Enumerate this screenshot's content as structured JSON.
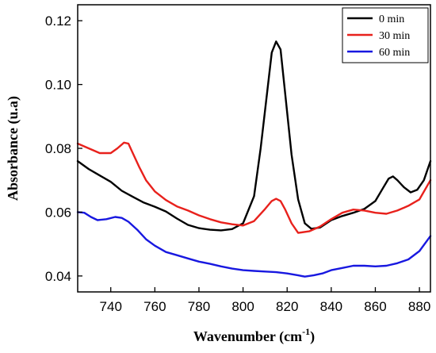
{
  "chart_data": {
    "type": "line",
    "xlabel": "Wavenumber (cm",
    "xlabel_sup": "-1",
    "xlabel_tail": ")",
    "ylabel": "Absorbance (u.a)",
    "xlim": [
      725,
      885
    ],
    "ylim": [
      0.035,
      0.125
    ],
    "x_ticks": [
      740,
      760,
      780,
      800,
      820,
      840,
      860,
      880
    ],
    "y_ticks": [
      0.04,
      0.06,
      0.08,
      0.1,
      0.12
    ],
    "y_tick_labels": [
      "0.04",
      "0.06",
      "0.08",
      "0.10",
      "0.12"
    ],
    "legend_position": "top-right",
    "grid": false,
    "series": [
      {
        "name": "0 min",
        "color": "#000000",
        "x": [
          725,
          730,
          735,
          740,
          745,
          750,
          755,
          760,
          765,
          770,
          775,
          780,
          785,
          790,
          795,
          800,
          805,
          808,
          811,
          813,
          815,
          817,
          819,
          822,
          825,
          828,
          831,
          835,
          840,
          845,
          850,
          855,
          860,
          863,
          866,
          868,
          870,
          873,
          876,
          879,
          882,
          885
        ],
        "y": [
          0.076,
          0.0735,
          0.0715,
          0.0695,
          0.0667,
          0.0648,
          0.063,
          0.0617,
          0.0602,
          0.058,
          0.056,
          0.055,
          0.0545,
          0.0543,
          0.0547,
          0.0565,
          0.065,
          0.08,
          0.098,
          0.11,
          0.1135,
          0.111,
          0.098,
          0.078,
          0.064,
          0.0565,
          0.0548,
          0.0552,
          0.0575,
          0.0588,
          0.0598,
          0.061,
          0.0635,
          0.067,
          0.0705,
          0.0712,
          0.07,
          0.0678,
          0.0662,
          0.067,
          0.07,
          0.076
        ]
      },
      {
        "name": "30 min",
        "color": "#e8211c",
        "x": [
          725,
          730,
          735,
          740,
          743,
          746,
          748,
          750,
          753,
          756,
          760,
          765,
          770,
          775,
          780,
          785,
          790,
          795,
          800,
          805,
          810,
          813,
          815,
          817,
          819,
          822,
          825,
          830,
          835,
          840,
          845,
          850,
          855,
          860,
          865,
          870,
          875,
          880,
          885
        ],
        "y": [
          0.0815,
          0.08,
          0.0785,
          0.0785,
          0.08,
          0.0818,
          0.0815,
          0.0785,
          0.074,
          0.07,
          0.0665,
          0.0638,
          0.0618,
          0.0605,
          0.059,
          0.0578,
          0.0568,
          0.0562,
          0.0558,
          0.0572,
          0.061,
          0.0635,
          0.0642,
          0.0635,
          0.061,
          0.0565,
          0.0535,
          0.054,
          0.0555,
          0.0578,
          0.0598,
          0.0608,
          0.0605,
          0.0598,
          0.0595,
          0.0605,
          0.062,
          0.064,
          0.07
        ]
      },
      {
        "name": "60 min",
        "color": "#1818e0",
        "x": [
          725,
          728,
          731,
          734,
          738,
          742,
          745,
          748,
          752,
          756,
          760,
          765,
          770,
          775,
          780,
          785,
          790,
          795,
          800,
          805,
          810,
          815,
          820,
          825,
          828,
          832,
          836,
          840,
          845,
          850,
          855,
          860,
          865,
          870,
          875,
          880,
          885
        ],
        "y": [
          0.06,
          0.0598,
          0.0585,
          0.0575,
          0.0578,
          0.0585,
          0.0582,
          0.057,
          0.0545,
          0.0515,
          0.0495,
          0.0475,
          0.0465,
          0.0455,
          0.0445,
          0.0438,
          0.043,
          0.0423,
          0.0418,
          0.0416,
          0.0414,
          0.0412,
          0.0408,
          0.0402,
          0.0398,
          0.0402,
          0.0408,
          0.0418,
          0.0425,
          0.0432,
          0.0432,
          0.043,
          0.0432,
          0.044,
          0.0452,
          0.0478,
          0.0525
        ]
      }
    ]
  }
}
